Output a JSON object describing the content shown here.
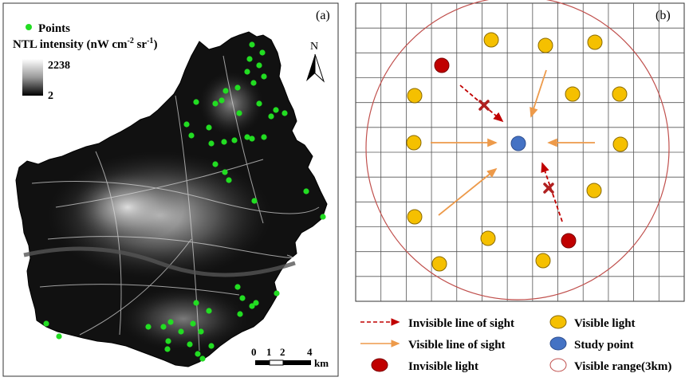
{
  "panel_a": {
    "label": "(a)",
    "legend_points": "Points",
    "legend_ntl_title": "NTL intensity (nW cm",
    "legend_ntl_sup1": "-2",
    "legend_ntl_mid": " sr",
    "legend_ntl_sup2": "-1",
    "legend_ntl_end": ")",
    "legend_ntl_max": "2238",
    "legend_ntl_min": "2",
    "north": "N",
    "scale_ticks": [
      "0",
      "1",
      "2",
      "4"
    ],
    "scale_unit": "km",
    "point_color": "#22dd22"
  },
  "panel_b": {
    "label": "(b)",
    "colors": {
      "visible_light": "#f5c000",
      "invisible_light": "#c00000",
      "study_point": "#4472c4",
      "visible_arrow": "#ed9a4a",
      "invisible_arrow": "#c00000",
      "range_circle": "#c0504d"
    }
  },
  "legend": {
    "invisible_line": "Invisible line of sight",
    "visible_line": "Visible line of sight",
    "invisible_light": "Invisible light",
    "visible_light": "Visible light",
    "study_point": "Study point",
    "visible_range": "Visible range(3km)"
  }
}
